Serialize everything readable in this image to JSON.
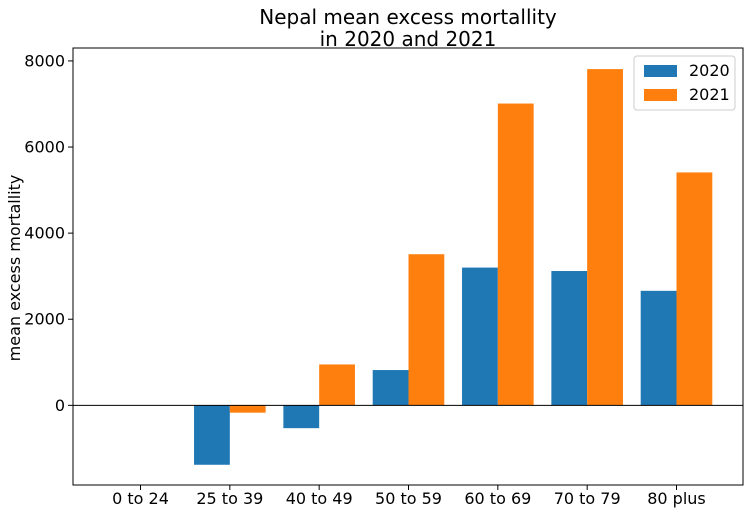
{
  "chart_data": {
    "type": "bar",
    "title_lines": [
      "Nepal mean excess mortallity",
      "in 2020 and 2021"
    ],
    "xlabel": "",
    "ylabel": "mean excess mortallity",
    "categories": [
      "0 to 24",
      "25 to 39",
      "40 to 49",
      "50 to 59",
      "60 to 69",
      "70 to 79",
      "80 plus"
    ],
    "series": [
      {
        "name": "2020",
        "color": "#1f77b4",
        "values": [
          0,
          -1380,
          -530,
          820,
          3200,
          3120,
          2660
        ]
      },
      {
        "name": "2021",
        "color": "#ff7f0e",
        "values": [
          0,
          -170,
          950,
          3510,
          7010,
          7810,
          5410
        ]
      }
    ],
    "ylim": [
      -1850,
      8300
    ],
    "yticks": [
      0,
      2000,
      4000,
      6000,
      8000
    ],
    "ytick_labels": [
      "0",
      "2000",
      "4000",
      "6000",
      "8000"
    ],
    "zero_line": true,
    "grid": false,
    "legend_position": "top-right"
  }
}
